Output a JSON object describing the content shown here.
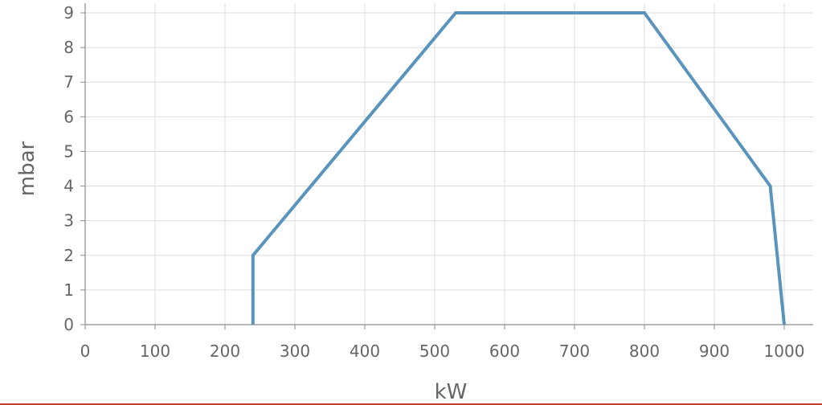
{
  "chart_data": {
    "type": "line",
    "title": "",
    "xlabel": "kW",
    "ylabel": "mbar",
    "xlim": [
      0,
      1000
    ],
    "ylim": [
      0,
      9
    ],
    "x_ticks": [
      0,
      100,
      200,
      300,
      400,
      500,
      600,
      700,
      800,
      900,
      1000
    ],
    "y_ticks": [
      0,
      1,
      2,
      3,
      4,
      5,
      6,
      7,
      8,
      9
    ],
    "grid": true,
    "legend": "none",
    "series": [
      {
        "x": [
          240,
          240,
          530,
          800,
          980,
          1000
        ],
        "y": [
          0,
          2,
          9,
          9,
          4,
          0
        ],
        "color": "#5a94bd"
      }
    ]
  },
  "colors": {
    "grid": "#dddddd",
    "axis": "#8c8c8c",
    "text": "#666666",
    "bottom_rule": "#c0392b"
  }
}
